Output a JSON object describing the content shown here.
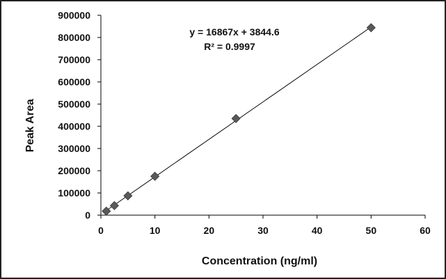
{
  "chart_data": {
    "type": "scatter",
    "xlabel": "Concentration (ng/ml)",
    "ylabel": "Peak Area",
    "xlim": [
      0,
      60
    ],
    "ylim": [
      0,
      900000
    ],
    "x_ticks": [
      "0",
      "10",
      "20",
      "30",
      "40",
      "50",
      "60"
    ],
    "y_ticks": [
      "0",
      "100000",
      "200000",
      "300000",
      "400000",
      "500000",
      "600000",
      "700000",
      "800000",
      "900000"
    ],
    "grid": false,
    "points": [
      {
        "x": 1,
        "y": 18000
      },
      {
        "x": 2.5,
        "y": 43000
      },
      {
        "x": 5,
        "y": 87000
      },
      {
        "x": 10,
        "y": 175000
      },
      {
        "x": 25,
        "y": 435000
      },
      {
        "x": 50,
        "y": 844000
      }
    ],
    "trendline": {
      "slope": 16867,
      "intercept": 3844.6,
      "x_range": [
        1,
        50
      ]
    },
    "equation_label": "y = 16867x + 3844.6",
    "r2_label": "R² = 0.9997",
    "marker_color": "#595959",
    "line_color": "#000000"
  }
}
